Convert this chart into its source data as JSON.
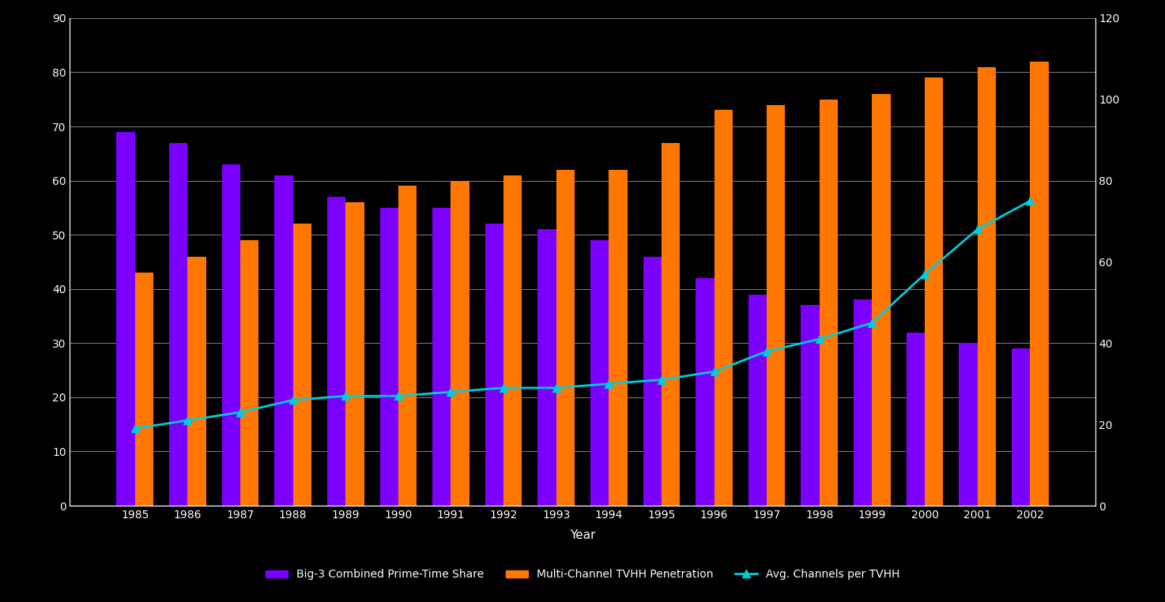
{
  "years": [
    1985,
    1986,
    1987,
    1988,
    1989,
    1990,
    1991,
    1992,
    1993,
    1994,
    1995,
    1996,
    1997,
    1998,
    1999,
    2000,
    2001,
    2002
  ],
  "big3_share": [
    69,
    67,
    63,
    61,
    57,
    55,
    55,
    52,
    51,
    49,
    46,
    42,
    39,
    37,
    38,
    32,
    30,
    29
  ],
  "multichannel_penetration": [
    43,
    46,
    49,
    52,
    56,
    59,
    60,
    61,
    62,
    62,
    67,
    73,
    74,
    75,
    76,
    79,
    81,
    82
  ],
  "avg_channels": [
    19,
    21,
    23,
    26,
    27,
    27,
    28,
    29,
    29,
    30,
    31,
    33,
    38,
    41,
    45,
    57,
    68,
    75
  ],
  "bar_width": 0.35,
  "purple_color": "#7B00FF",
  "orange_color": "#FF7700",
  "cyan_color": "#00CCDD",
  "background_color": "#000000",
  "text_color": "#FFFFFF",
  "grid_color": "#FFFFFF",
  "xlabel": "Year",
  "ylim_left": [
    0,
    90
  ],
  "ylim_right": [
    0,
    120
  ],
  "yticks_left": [
    0,
    10,
    20,
    30,
    40,
    50,
    60,
    70,
    80,
    90
  ],
  "yticks_right": [
    0,
    20,
    40,
    60,
    80,
    100,
    120
  ],
  "legend_labels": [
    "Big-3 Combined Prime-Time Share",
    "Multi-Channel TVHH Penetration",
    "Avg. Channels per TVHH"
  ],
  "axis_fontsize": 11,
  "tick_fontsize": 10,
  "legend_fontsize": 10
}
